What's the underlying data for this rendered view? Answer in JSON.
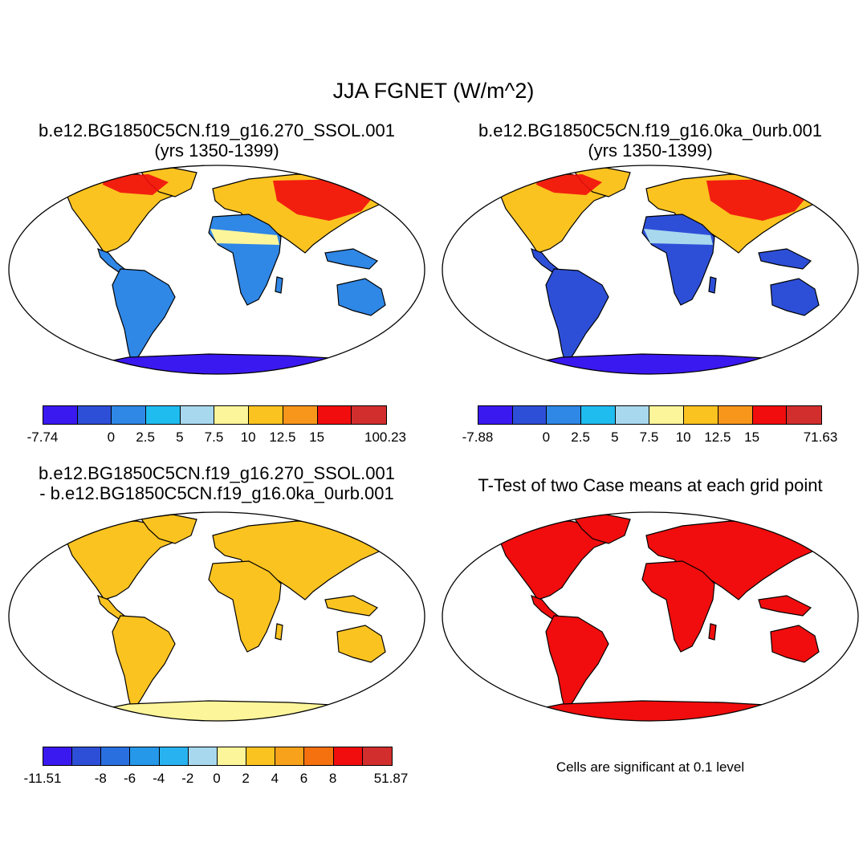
{
  "main_title": "JJA FGNET (W/m^2)",
  "panels": [
    {
      "title_line1": "b.e12.BG1850C5CN.f19_g16.270_SSOL.001",
      "title_line2": "(yrs 1350-1399)",
      "colorbar": {
        "colors": [
          "#3a19f0",
          "#2d4fd8",
          "#2f87e6",
          "#1fbcf0",
          "#a8d8ee",
          "#fdf59a",
          "#fbc320",
          "#f8961b",
          "#f10d0d",
          "#d22e2e"
        ],
        "labels": [
          "-7.74",
          "0",
          "2.5",
          "5",
          "7.5",
          "10",
          "12.5",
          "15",
          "100.23"
        ]
      }
    },
    {
      "title_line1": "b.e12.BG1850C5CN.f19_g16.0ka_0urb.001",
      "title_line2": "(yrs 1350-1399)",
      "colorbar": {
        "colors": [
          "#3a19f0",
          "#2d4fd8",
          "#2f87e6",
          "#1fbcf0",
          "#a8d8ee",
          "#fdf59a",
          "#fbc320",
          "#f8961b",
          "#f10d0d",
          "#d22e2e"
        ],
        "labels": [
          "-7.88",
          "0",
          "2.5",
          "5",
          "7.5",
          "10",
          "12.5",
          "15",
          "71.63"
        ]
      }
    },
    {
      "title_line1": "b.e12.BG1850C5CN.f19_g16.270_SSOL.001",
      "title_line2": "- b.e12.BG1850C5CN.f19_g16.0ka_0urb.001",
      "colorbar": {
        "colors": [
          "#3a19f0",
          "#2d4fd8",
          "#2a6fe0",
          "#2598ea",
          "#28b3f0",
          "#a8d8ee",
          "#fdf59a",
          "#fbc320",
          "#f8a21b",
          "#f5700f",
          "#f10d0d",
          "#d22e2e"
        ],
        "labels": [
          "-11.51",
          "-8",
          "-6",
          "-4",
          "-2",
          "0",
          "2",
          "4",
          "6",
          "8",
          "51.87"
        ]
      }
    },
    {
      "title_line1": "T-Test of two Case means at each grid point",
      "title_line2": ""
    }
  ],
  "note": "Cells are significant at 0.1 level",
  "map_fills": {
    "panel1": {
      "north": "#fbc320",
      "northeast": "#f10d0d",
      "africa_north": "#fdf59a",
      "south": "#2f87e6",
      "antarctica": "#3a19f0"
    },
    "panel2": {
      "north": "#fbc320",
      "northeast": "#f10d0d",
      "africa_north": "#a8d8ee",
      "south": "#2d4fd8",
      "antarctica": "#3a19f0"
    },
    "panel3": {
      "north": "#fbc320",
      "south": "#fbc320",
      "antarctica": "#fdf59a"
    },
    "panel4": {
      "land": "#f10d0d",
      "antarctica": "#f10d0d"
    }
  }
}
